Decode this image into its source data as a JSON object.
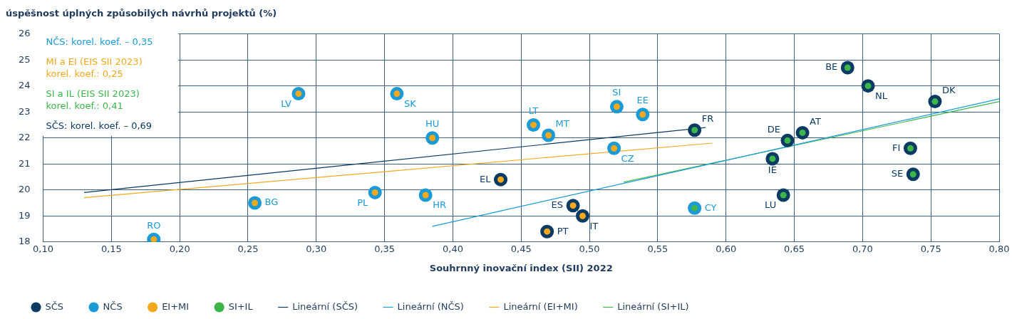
{
  "chart_data": {
    "type": "scatter",
    "xlabel": "Souhrnný inovační index (SII) 2022",
    "ylabel": "úspěšnost úplných způsobilých návrhů projektů (%)",
    "xlim": [
      0.1,
      0.8
    ],
    "xticks": [
      {
        "value": 0.1,
        "label": "0,10"
      },
      {
        "value": 0.15,
        "label": "0,15"
      },
      {
        "value": 0.2,
        "label": "0,20"
      },
      {
        "value": 0.25,
        "label": "0,25"
      },
      {
        "value": 0.3,
        "label": "0,30"
      },
      {
        "value": 0.35,
        "label": "0,35"
      },
      {
        "value": 0.4,
        "label": "0,40"
      },
      {
        "value": 0.45,
        "label": "0,45"
      },
      {
        "value": 0.5,
        "label": "0,50"
      },
      {
        "value": 0.55,
        "label": "0,55"
      },
      {
        "value": 0.6,
        "label": "0,60"
      },
      {
        "value": 0.65,
        "label": "0,65"
      },
      {
        "value": 0.7,
        "label": "0,70"
      },
      {
        "value": 0.75,
        "label": "0,75"
      },
      {
        "value": 0.8,
        "label": "0,80"
      }
    ],
    "ylim": [
      18,
      26
    ],
    "yticks": [
      18,
      19,
      20,
      21,
      22,
      23,
      24,
      25,
      26
    ],
    "grid": true,
    "legend": "bottom",
    "marker": "circle",
    "series": [
      {
        "name": "SČS",
        "color": "#0b3a63",
        "x": [
          0.435,
          0.469,
          0.488,
          0.495,
          0.577,
          0.634,
          0.645,
          0.656,
          0.642,
          0.689,
          0.704,
          0.735,
          0.737,
          0.753
        ],
        "values": [
          20.4,
          18.4,
          19.4,
          19.0,
          22.3,
          21.2,
          21.9,
          22.2,
          19.8,
          24.7,
          24.0,
          21.6,
          20.6,
          23.4
        ]
      },
      {
        "name": "NČS",
        "color": "#1a9ad6",
        "x": [
          0.181,
          0.255,
          0.287,
          0.343,
          0.359,
          0.38,
          0.385,
          0.459,
          0.47,
          0.518,
          0.52,
          0.539,
          0.577
        ],
        "values": [
          18.1,
          19.5,
          23.7,
          19.9,
          23.7,
          19.8,
          22.0,
          22.5,
          22.1,
          21.6,
          23.2,
          22.9,
          19.3
        ]
      },
      {
        "name": "EI+MI",
        "color": "#f5a81c",
        "x": [
          0.181,
          0.255,
          0.287,
          0.343,
          0.359,
          0.38,
          0.385,
          0.435,
          0.459,
          0.47,
          0.469,
          0.488,
          0.495,
          0.518,
          0.52,
          0.539
        ],
        "values": [
          18.1,
          19.5,
          23.7,
          19.9,
          23.7,
          19.8,
          22.0,
          20.4,
          22.5,
          22.1,
          18.4,
          19.4,
          19.0,
          21.6,
          23.2,
          22.9
        ]
      },
      {
        "name": "SI+IL",
        "color": "#3cb54a",
        "x": [
          0.577,
          0.577,
          0.634,
          0.645,
          0.656,
          0.642,
          0.689,
          0.704,
          0.735,
          0.737,
          0.753
        ],
        "values": [
          19.3,
          22.3,
          21.2,
          21.9,
          22.2,
          19.8,
          24.7,
          24.0,
          21.6,
          20.6,
          23.4
        ]
      },
      {
        "name": "Lineární (SČS)",
        "type": "line",
        "marker": "none",
        "color": "#0b3a63",
        "x": [
          0.13,
          0.585
        ],
        "values": [
          19.9,
          22.4
        ]
      },
      {
        "name": "Lineární (NČS)",
        "type": "line",
        "marker": "none",
        "color": "#1a9ad6",
        "x": [
          0.385,
          0.8
        ],
        "values": [
          18.6,
          23.5
        ]
      },
      {
        "name": "Lineární (EI+MI)",
        "type": "line",
        "marker": "none",
        "color": "#f5a81c",
        "x": [
          0.13,
          0.59
        ],
        "values": [
          19.7,
          21.8
        ]
      },
      {
        "name": "Lineární (SI+IL)",
        "type": "line",
        "marker": "none",
        "color": "#3cb54a",
        "x": [
          0.525,
          0.8
        ],
        "values": [
          20.3,
          23.4
        ]
      }
    ],
    "annotations": [
      "NČS: korel. koef. – 0,35",
      "MI a EI (EIS SII 2023)\nkorel. koef.: 0,25",
      "SI a IL (EIS SII 2023)\nkorel. koef.: 0,41",
      "SČS: korel. koef. – 0,69",
      {
        "text": "RO",
        "x": 0.181,
        "y": 18.1
      },
      {
        "text": "BG",
        "x": 0.255,
        "y": 19.5
      },
      {
        "text": "LV",
        "x": 0.287,
        "y": 23.7
      },
      {
        "text": "PL",
        "x": 0.343,
        "y": 19.9
      },
      {
        "text": "SK",
        "x": 0.359,
        "y": 23.7
      },
      {
        "text": "HR",
        "x": 0.38,
        "y": 19.8
      },
      {
        "text": "HU",
        "x": 0.385,
        "y": 22.0
      },
      {
        "text": "EL",
        "x": 0.435,
        "y": 20.4
      },
      {
        "text": "LT",
        "x": 0.459,
        "y": 22.5
      },
      {
        "text": "MT",
        "x": 0.47,
        "y": 22.1
      },
      {
        "text": "PT",
        "x": 0.469,
        "y": 18.4
      },
      {
        "text": "ES",
        "x": 0.488,
        "y": 19.4
      },
      {
        "text": "IT",
        "x": 0.495,
        "y": 19.0
      },
      {
        "text": "CZ",
        "x": 0.518,
        "y": 21.6
      },
      {
        "text": "SI",
        "x": 0.52,
        "y": 23.2
      },
      {
        "text": "EE",
        "x": 0.539,
        "y": 22.9
      },
      {
        "text": "CY",
        "x": 0.577,
        "y": 19.3
      },
      {
        "text": "FR",
        "x": 0.577,
        "y": 22.3
      },
      {
        "text": "IE",
        "x": 0.634,
        "y": 21.2
      },
      {
        "text": "DE",
        "x": 0.645,
        "y": 21.9
      },
      {
        "text": "AT",
        "x": 0.656,
        "y": 22.2
      },
      {
        "text": "LU",
        "x": 0.642,
        "y": 19.8
      },
      {
        "text": "BE",
        "x": 0.689,
        "y": 24.7
      },
      {
        "text": "NL",
        "x": 0.704,
        "y": 24.0
      },
      {
        "text": "FI",
        "x": 0.735,
        "y": 21.6
      },
      {
        "text": "SE",
        "x": 0.737,
        "y": 20.6
      },
      {
        "text": "DK",
        "x": 0.753,
        "y": 23.4
      }
    ]
  }
}
